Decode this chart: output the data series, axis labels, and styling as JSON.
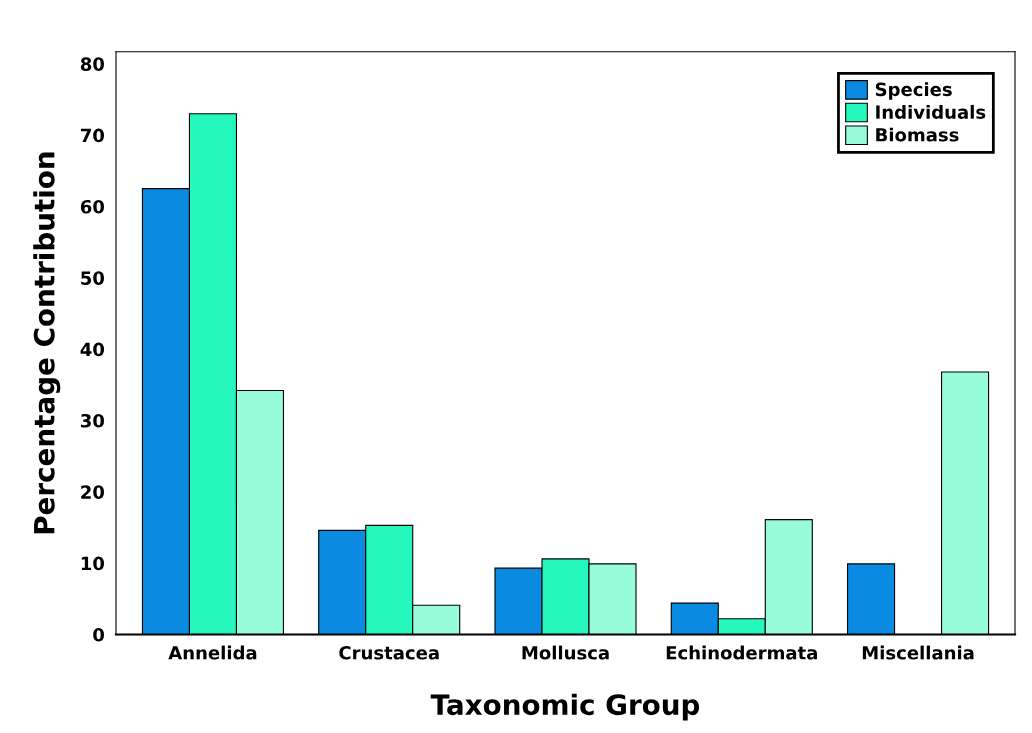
{
  "chart_data": {
    "type": "bar",
    "xlabel": "Taxonomic Group",
    "ylabel": "Percentage Contribution",
    "categories": [
      "Annelida",
      "Crustacea",
      "Mollusca",
      "Echinodermata",
      "Miscellania"
    ],
    "series": [
      {
        "name": "Species",
        "color": "#0a8ae0",
        "values": [
          62.5,
          14.6,
          9.3,
          4.4,
          9.9
        ]
      },
      {
        "name": "Individuals",
        "color": "#26f7bd",
        "values": [
          73,
          15.3,
          10.6,
          2.2,
          null
        ]
      },
      {
        "name": "Biomass",
        "color": "#96fcd9",
        "values": [
          34.2,
          4.1,
          9.9,
          16.1,
          36.8
        ]
      }
    ],
    "ylim": [
      0,
      81.7
    ],
    "yticks": [
      0,
      10,
      20,
      30,
      40,
      50,
      60,
      70,
      80
    ],
    "grid": false,
    "legend": "top right"
  }
}
